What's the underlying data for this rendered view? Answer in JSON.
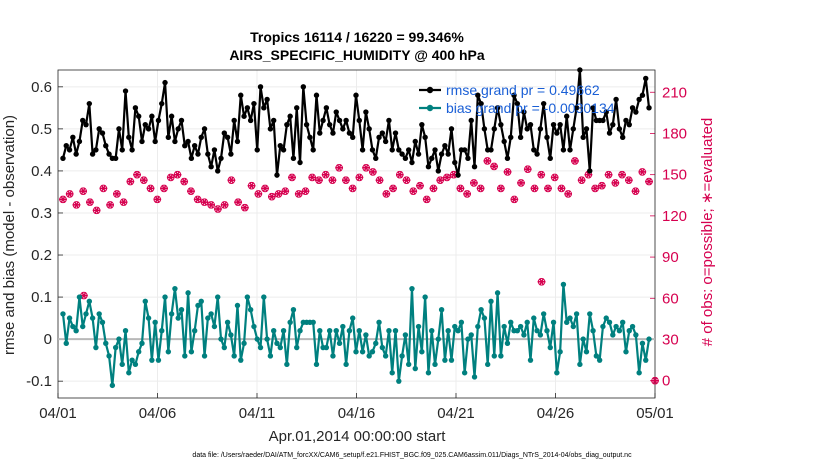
{
  "chart_data": {
    "type": "line",
    "title": "Tropics 16114 / 16220 = 99.346%",
    "subtitle": "AIRS_SPECIFIC_HUMIDITY @ 400 hPa",
    "xlabel": "Apr.01,2014 00:00:00 start",
    "ylabel": "rmse and bias (model - observation)",
    "y2label": "# of obs: o=possible; ∗=evaluated",
    "footnote": "data file: /Users/raeder/DAI/ATM_forcXX/CAM6_setup/f.e21.FHIST_BGC.f09_025.CAM6assim.011/Diags_NTrS_2014-04/obs_diag_output.nc",
    "xlim": [
      0,
      30
    ],
    "ylim": [
      -0.14,
      0.64
    ],
    "y2lim": [
      -12.6,
      226.2
    ],
    "xticks": [
      0,
      5,
      10,
      15,
      20,
      25,
      30
    ],
    "xticklabels": [
      "04/01",
      "04/06",
      "04/11",
      "04/16",
      "04/21",
      "04/26",
      "05/01"
    ],
    "yticks": [
      -0.1,
      0,
      0.1,
      0.2,
      0.3,
      0.4,
      0.5,
      0.6
    ],
    "yticklabels": [
      "-0.1",
      "0",
      "0.1",
      "0.2",
      "0.3",
      "0.4",
      "0.5",
      "0.6"
    ],
    "y2ticks": [
      0,
      30,
      60,
      90,
      120,
      150,
      180,
      210
    ],
    "y2ticklabels": [
      "0",
      "30",
      "60",
      "90",
      "120",
      "150",
      "180",
      "210"
    ],
    "grid": true,
    "legend_position": "top-right",
    "series": [
      {
        "name": "rmse grand pr = 0.49662",
        "axis": "left",
        "color": "#000000",
        "values": [
          0.43,
          0.46,
          0.45,
          0.48,
          0.44,
          0.47,
          0.52,
          0.51,
          0.56,
          0.44,
          0.45,
          0.5,
          0.49,
          0.46,
          0.44,
          0.43,
          0.43,
          0.5,
          0.45,
          0.59,
          0.48,
          0.45,
          0.55,
          0.53,
          0.47,
          0.51,
          0.5,
          0.53,
          0.47,
          0.52,
          0.56,
          0.61,
          0.48,
          0.53,
          0.47,
          0.5,
          0.52,
          0.46,
          0.47,
          0.43,
          0.46,
          0.44,
          0.48,
          0.5,
          0.44,
          0.41,
          0.45,
          0.4,
          0.43,
          0.49,
          0.48,
          0.44,
          0.52,
          0.47,
          0.58,
          0.53,
          0.55,
          0.52,
          0.56,
          0.45,
          0.6,
          0.55,
          0.57,
          0.5,
          0.52,
          0.39,
          0.46,
          0.45,
          0.51,
          0.53,
          0.43,
          0.55,
          0.42,
          0.6,
          0.51,
          0.48,
          0.45,
          0.58,
          0.49,
          0.52,
          0.55,
          0.51,
          0.49,
          0.54,
          0.52,
          0.5,
          0.52,
          0.49,
          0.48,
          0.58,
          0.52,
          0.45,
          0.54,
          0.5,
          0.45,
          0.43,
          0.48,
          0.49,
          0.47,
          0.52,
          0.45,
          0.49,
          0.45,
          0.44,
          0.43,
          0.45,
          0.42,
          0.47,
          0.44,
          0.51,
          0.48,
          0.41,
          0.43,
          0.45,
          0.4,
          0.44,
          0.46,
          0.44,
          0.5,
          0.42,
          0.39,
          0.45,
          0.45,
          0.43,
          0.52,
          0.41,
          0.58,
          0.56,
          0.5,
          0.45,
          0.45,
          0.5,
          0.55,
          0.51,
          0.47,
          0.43,
          0.48,
          0.58,
          0.56,
          0.48,
          0.54,
          0.5,
          0.51,
          0.45,
          0.44,
          0.5,
          0.56,
          0.48,
          0.43,
          0.51,
          0.49,
          0.51,
          0.45,
          0.53,
          0.45,
          0.5,
          0.55,
          0.64,
          0.48,
          0.5,
          0.4,
          0.55,
          0.52,
          0.52,
          0.52,
          0.54,
          0.49,
          0.51,
          0.57,
          0.5,
          0.48,
          0.52,
          0.51,
          0.55,
          0.54,
          0.57,
          0.58,
          0.62,
          0.55
        ],
        "marker": "filled circle"
      },
      {
        "name": "bias grand pr = -0.0030134",
        "axis": "left",
        "color": "#00807f",
        "values": [
          0.06,
          -0.01,
          0.05,
          0.03,
          0.02,
          0.1,
          0.03,
          0.06,
          0.09,
          0.05,
          -0.02,
          0.06,
          0.04,
          -0.01,
          -0.04,
          -0.11,
          -0.02,
          0.0,
          -0.06,
          0.02,
          -0.08,
          -0.05,
          -0.06,
          -0.03,
          -0.01,
          0.09,
          0.05,
          -0.05,
          0.04,
          -0.05,
          0.02,
          0.1,
          -0.03,
          0.06,
          0.12,
          0.05,
          0.07,
          -0.04,
          0.11,
          -0.03,
          0.02,
          0.08,
          0.09,
          -0.04,
          0.05,
          0.06,
          0.03,
          0.1,
          0.0,
          -0.02,
          0.04,
          0.01,
          -0.04,
          0.08,
          -0.05,
          -0.01,
          0.1,
          0.07,
          0.03,
          0.0,
          -0.02,
          0.1,
          0.0,
          -0.04,
          0.02,
          -0.01,
          -0.02,
          0.02,
          -0.06,
          0.04,
          0.07,
          -0.02,
          0.02,
          0.04,
          0.04,
          0.04,
          0.04,
          -0.06,
          0.02,
          -0.02,
          -0.02,
          0.02,
          -0.04,
          0.02,
          -0.01,
          0.03,
          -0.06,
          0.02,
          0.05,
          -0.03,
          0.02,
          -0.03,
          0.01,
          -0.04,
          -0.03,
          -0.01,
          0.04,
          -0.02,
          -0.04,
          0.02,
          -0.08,
          0.02,
          -0.1,
          -0.04,
          0.01,
          -0.06,
          0.12,
          -0.07,
          0.03,
          -0.03,
          0.1,
          -0.08,
          0.02,
          -0.06,
          0.0,
          0.07,
          -0.05,
          0.02,
          -0.05,
          0.03,
          0.02,
          0.04,
          -0.08,
          0.0,
          0.01,
          -0.09,
          0.03,
          0.07,
          0.05,
          -0.06,
          0.09,
          -0.04,
          0.11,
          -0.04,
          0.03,
          -0.01,
          0.04,
          0.02,
          0.02,
          0.03,
          0.01,
          0.04,
          -0.05,
          0.05,
          0.02,
          0.01,
          0.06,
          0.02,
          -0.02,
          0.04,
          -0.08,
          -0.03,
          0.13,
          0.04,
          0.05,
          0.03,
          0.06,
          -0.06,
          0.0,
          -0.03,
          0.06,
          0.02,
          -0.04,
          -0.05,
          0.03,
          0.05,
          0.04,
          0.01,
          0.03,
          0.02,
          0.04,
          -0.03,
          0.02,
          0.03,
          0.01,
          -0.08,
          -0.01,
          -0.05,
          0.0
        ],
        "marker": "filled circle"
      },
      {
        "name": "# obs possible",
        "axis": "right",
        "color": "#d6004f",
        "marker": "open circle",
        "values": [
          132,
          125,
          136,
          131,
          128,
          122,
          138,
          148,
          130,
          125,
          124,
          135,
          140,
          132,
          128,
          124,
          136,
          128,
          130,
          136,
          145,
          138,
          150,
          135,
          146,
          142,
          140,
          145,
          132,
          146,
          140,
          132,
          148,
          136,
          150,
          130,
          145,
          128,
          138,
          146,
          132,
          136,
          130,
          148,
          128,
          114,
          125,
          130,
          128,
          138,
          146,
          136,
          130,
          142,
          126,
          135,
          142,
          148,
          136,
          126,
          140,
          150,
          134,
          140,
          136,
          145,
          138,
          144,
          148,
          140,
          136,
          130,
          138,
          144,
          148,
          130,
          146,
          140,
          150,
          134,
          146,
          148,
          155,
          136,
          146,
          150,
          140,
          130,
          148,
          136,
          155,
          140,
          152,
          142,
          146,
          150,
          136,
          148,
          140,
          134,
          150,
          140,
          146,
          148,
          138,
          150,
          142,
          148,
          132,
          152,
          140,
          155,
          146,
          138,
          148,
          142,
          150,
          156,
          140,
          150,
          136,
          138,
          144,
          148,
          140,
          152,
          160,
          146,
          156,
          144,
          140,
          148,
          152,
          148,
          132,
          136,
          144,
          150,
          154,
          148,
          140,
          160,
          150,
          144,
          140,
          150,
          148,
          156,
          140,
          148,
          136,
          150,
          160,
          148,
          146,
          140,
          150,
          148,
          140,
          138,
          142,
          146,
          150,
          132,
          144,
          140,
          150,
          156,
          146,
          140,
          138,
          148,
          152,
          150,
          145
        ]
      },
      {
        "name": "# obs evaluated",
        "axis": "right",
        "color": "#d6004f",
        "marker": "asterisk",
        "values": [
          132,
          125,
          136,
          131,
          128,
          122,
          138,
          148,
          130,
          125,
          124,
          135,
          140,
          132,
          128,
          124,
          136,
          128,
          130,
          136,
          145,
          138,
          150,
          135,
          146,
          142,
          140,
          145,
          132,
          146,
          140,
          132,
          148,
          136,
          150,
          130,
          145,
          128,
          138,
          146,
          132,
          136,
          130,
          148,
          128,
          114,
          125,
          130,
          128,
          138,
          146,
          136,
          130,
          142,
          126,
          135,
          142,
          148,
          136,
          126,
          140,
          150,
          134,
          140,
          136,
          145,
          138,
          144,
          148,
          140,
          136,
          130,
          138,
          144,
          148,
          130,
          146,
          140,
          150,
          134,
          146,
          148,
          155,
          136,
          146,
          150,
          140,
          130,
          148,
          136,
          155,
          140,
          152,
          142,
          146,
          150,
          136,
          148,
          140,
          134,
          150,
          140,
          146,
          148,
          138,
          150,
          142,
          148,
          132,
          152,
          140,
          155,
          146,
          138,
          148,
          142,
          150,
          156,
          140,
          150,
          136,
          138,
          144,
          148,
          140,
          152,
          160,
          146,
          156,
          144,
          140,
          148,
          152,
          148,
          132,
          136,
          144,
          150,
          154,
          148,
          140,
          160,
          150,
          144,
          140,
          150,
          148,
          156,
          140,
          148,
          136,
          150,
          160,
          148,
          146,
          140,
          150,
          148,
          140,
          138,
          142,
          146,
          150,
          132,
          144,
          140,
          150,
          156,
          146,
          140,
          138,
          148,
          152,
          150,
          145
        ]
      }
    ],
    "extra_points": [
      {
        "series": "# obs evaluated",
        "x": 1.3,
        "y": 62
      },
      {
        "series": "# obs evaluated",
        "x": 24.3,
        "y": 72
      },
      {
        "series": "# obs evaluated",
        "x": 30,
        "y": 0
      }
    ]
  }
}
